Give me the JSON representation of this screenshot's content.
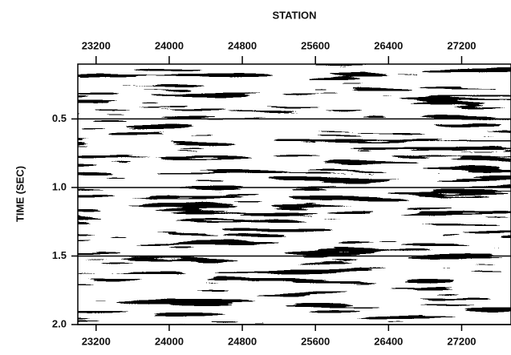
{
  "chart_data": {
    "type": "seismic",
    "title": "STATION",
    "y_label": "TIME (SEC)",
    "xlim": [
      23000,
      27740
    ],
    "xticks": [
      23200,
      24000,
      24800,
      25600,
      26400,
      27200
    ],
    "ylim": [
      0.1,
      2.0
    ],
    "yticks": [
      0.5,
      {
        "value": 1.0,
        "label": "1.0"
      },
      1.5,
      {
        "value": 2.0,
        "label": "2.0"
      }
    ],
    "grid": true
  }
}
